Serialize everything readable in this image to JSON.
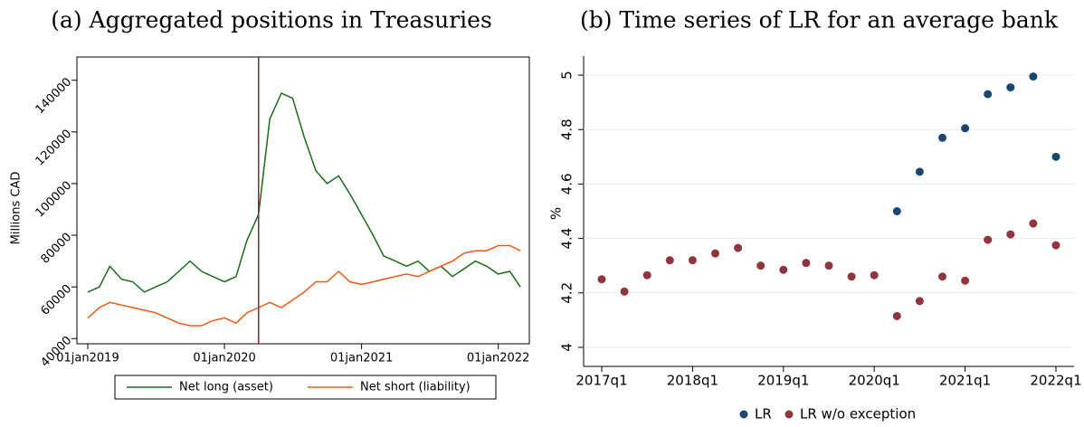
{
  "chart_data": [
    {
      "type": "line",
      "title": "(a) Aggregated positions in Treasuries",
      "ylabel": "Millions CAD",
      "x": [
        "2019-01-01",
        "2019-02-01",
        "2019-03-01",
        "2019-04-01",
        "2019-05-01",
        "2019-06-01",
        "2019-07-01",
        "2019-08-01",
        "2019-09-01",
        "2019-10-01",
        "2019-11-01",
        "2019-12-01",
        "2020-01-01",
        "2020-02-01",
        "2020-03-01",
        "2020-04-01",
        "2020-05-01",
        "2020-06-01",
        "2020-07-01",
        "2020-08-01",
        "2020-09-01",
        "2020-10-01",
        "2020-11-01",
        "2020-12-01",
        "2021-01-01",
        "2021-02-01",
        "2021-03-01",
        "2021-04-01",
        "2021-05-01",
        "2021-06-01",
        "2021-07-01",
        "2021-08-01",
        "2021-09-01",
        "2021-10-01",
        "2021-11-01",
        "2021-12-01",
        "2022-01-01",
        "2022-02-01",
        "2022-03-01"
      ],
      "series": [
        {
          "name": "Net long (asset)",
          "color": "#1a6b1a",
          "values": [
            58000,
            60000,
            68000,
            63000,
            62000,
            58000,
            60000,
            62000,
            66000,
            70000,
            66000,
            64000,
            62000,
            64000,
            78000,
            88000,
            125000,
            135000,
            133000,
            118000,
            105000,
            100000,
            103000,
            96000,
            88000,
            80000,
            72000,
            70000,
            68000,
            70000,
            66000,
            68000,
            64000,
            67000,
            70000,
            68000,
            65000,
            66000,
            60000
          ]
        },
        {
          "name": "Net short (liability)",
          "color": "#f05a14",
          "values": [
            48000,
            52000,
            54000,
            53000,
            52000,
            51000,
            50000,
            48000,
            46000,
            45000,
            45000,
            47000,
            48000,
            46000,
            50000,
            52000,
            54000,
            52000,
            55000,
            58000,
            62000,
            62000,
            66000,
            62000,
            61000,
            62000,
            63000,
            64000,
            65000,
            64000,
            66000,
            68000,
            70000,
            73000,
            74000,
            74000,
            76000,
            76000,
            74000
          ]
        }
      ],
      "vline": "2020-04-01",
      "vline_color": "#b0103a",
      "xlim": [
        "2018-12-03",
        "2022-03-25"
      ],
      "xticks": [
        {
          "value": "2019-01-01",
          "label": "01jan2019"
        },
        {
          "value": "2020-01-01",
          "label": "01jan2020"
        },
        {
          "value": "2021-01-01",
          "label": "01jan2021"
        },
        {
          "value": "2022-01-01",
          "label": "01jan2022"
        }
      ],
      "ylim": [
        38000,
        149000
      ],
      "yticks": [
        40000,
        60000,
        80000,
        100000,
        120000,
        140000
      ],
      "legend": "bottom"
    },
    {
      "type": "scatter",
      "title": "(b) Time series of LR for an average bank",
      "ylabel": "%",
      "categories": [
        "2017q1",
        null,
        null,
        null,
        "2018q1",
        null,
        null,
        null,
        "2019q1",
        null,
        null,
        null,
        "2020q1",
        null,
        null,
        null,
        "2021q1",
        null,
        null,
        null,
        "2022q1"
      ],
      "series": [
        {
          "name": "LR",
          "color": "#1a476f",
          "values": [
            null,
            null,
            null,
            null,
            null,
            null,
            null,
            null,
            null,
            null,
            null,
            null,
            null,
            4.5,
            4.645,
            4.77,
            4.805,
            4.93,
            4.955,
            4.995,
            4.7
          ]
        },
        {
          "name": "LR w/o exception",
          "color": "#90353b",
          "values": [
            4.25,
            4.205,
            4.265,
            4.32,
            4.32,
            4.345,
            4.365,
            4.3,
            4.285,
            4.31,
            4.3,
            4.26,
            4.265,
            4.115,
            4.17,
            4.26,
            4.245,
            4.395,
            4.415,
            4.455,
            4.375
          ]
        }
      ],
      "ylim": [
        3.93,
        5.07
      ],
      "yticks": [
        4,
        4.2,
        4.4,
        4.6,
        4.8,
        5
      ],
      "grid": true,
      "legend": "bottom"
    }
  ]
}
